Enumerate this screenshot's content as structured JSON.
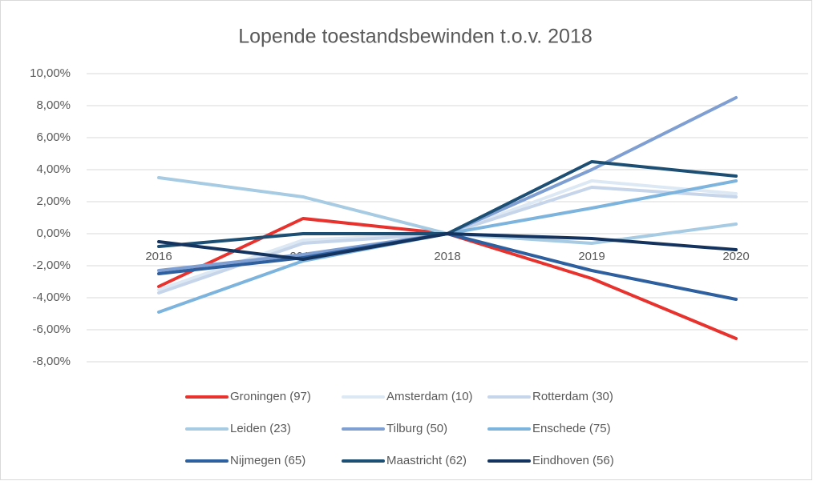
{
  "chart_data": {
    "type": "line",
    "title": "Lopende toestandsbewinden t.o.v. 2018",
    "categories": [
      "2016",
      "2017",
      "2018",
      "2019",
      "2020"
    ],
    "series": [
      {
        "name": "Groningen (97)",
        "color": "#e8322e",
        "values": [
          -3.3,
          0.95,
          0,
          -2.8,
          -6.55
        ]
      },
      {
        "name": "Amsterdam (10)",
        "color": "#dde8f5",
        "values": [
          -3.5,
          -0.4,
          0,
          3.3,
          2.5
        ]
      },
      {
        "name": "Rotterdam (30)",
        "color": "#c7d5ea",
        "values": [
          -3.7,
          -0.6,
          0,
          2.9,
          2.3
        ]
      },
      {
        "name": "Leiden (23)",
        "color": "#a6cbe3",
        "values": [
          3.5,
          2.3,
          0,
          -0.6,
          0.6
        ]
      },
      {
        "name": "Tilburg (50)",
        "color": "#7f9fd2",
        "values": [
          -2.3,
          -1.3,
          0,
          4.0,
          8.5
        ]
      },
      {
        "name": "Enschede (75)",
        "color": "#7db4de",
        "values": [
          -4.9,
          -1.7,
          0,
          1.6,
          3.3
        ]
      },
      {
        "name": "Nijmegen (65)",
        "color": "#2e5f9f",
        "values": [
          -2.5,
          -1.5,
          0,
          -2.3,
          -4.1
        ]
      },
      {
        "name": "Maastricht (62)",
        "color": "#1d4f74",
        "values": [
          -0.8,
          0.0,
          0,
          4.5,
          3.6
        ]
      },
      {
        "name": "Eindhoven (56)",
        "color": "#14335e",
        "values": [
          -0.5,
          -1.6,
          0,
          -0.3,
          -1.0
        ]
      }
    ],
    "ylim": [
      -8,
      10
    ],
    "yticks": [
      {
        "value": -8,
        "label": "-8,00%"
      },
      {
        "value": -6,
        "label": "-6,00%"
      },
      {
        "value": -4,
        "label": "-4,00%"
      },
      {
        "value": -2,
        "label": "-2,00%"
      },
      {
        "value": 0,
        "label": "0,00%"
      },
      {
        "value": 2,
        "label": "2,00%"
      },
      {
        "value": 4,
        "label": "4,00%"
      },
      {
        "value": 6,
        "label": "6,00%"
      },
      {
        "value": 8,
        "label": "8,00%"
      },
      {
        "value": 10,
        "label": "10,00%"
      }
    ],
    "grid": true,
    "legend": "bottom"
  }
}
